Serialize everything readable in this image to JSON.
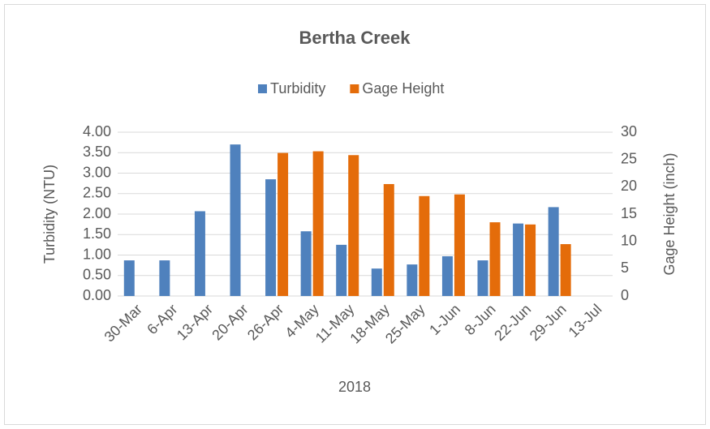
{
  "chart_data": {
    "type": "bar",
    "title": "Bertha Creek",
    "x_label": "2018",
    "y_label": "Turbidity (NTU)",
    "y2_label": "Gage Height (inch)",
    "categories": [
      "30-Mar",
      "6-Apr",
      "13-Apr",
      "20-Apr",
      "26-Apr",
      "4-May",
      "11-May",
      "18-May",
      "25-May",
      "1-Jun",
      "8-Jun",
      "22-Jun",
      "29-Jun",
      "13-Jul"
    ],
    "series": [
      {
        "name": "Turbidity",
        "color": "#4f81bd",
        "values": [
          0.87,
          0.87,
          2.07,
          3.7,
          2.85,
          1.58,
          1.25,
          0.67,
          0.77,
          0.97,
          0.87,
          1.77,
          2.17,
          null
        ]
      },
      {
        "name": "Gage Height",
        "color": "#e46c0a",
        "axis": "y2",
        "values": [
          null,
          null,
          null,
          null,
          26.2,
          26.5,
          25.8,
          20.5,
          18.3,
          18.6,
          13.5,
          13.1,
          9.5,
          null
        ]
      }
    ],
    "ylim": [
      0,
      4
    ],
    "yticks": [
      {
        "value": 0,
        "label": "0.00"
      },
      {
        "value": 0.5,
        "label": "0.50"
      },
      {
        "value": 1,
        "label": "1.00"
      },
      {
        "value": 1.5,
        "label": "1.50"
      },
      {
        "value": 2,
        "label": "2.00"
      },
      {
        "value": 2.5,
        "label": "2.50"
      },
      {
        "value": 3,
        "label": "3.00"
      },
      {
        "value": 3.5,
        "label": "3.50"
      },
      {
        "value": 4,
        "label": "4.00"
      }
    ],
    "y2lim": [
      0,
      30
    ],
    "y2ticks": [
      0,
      5,
      10,
      15,
      20,
      25,
      30
    ],
    "grid": true,
    "legend": "top"
  }
}
